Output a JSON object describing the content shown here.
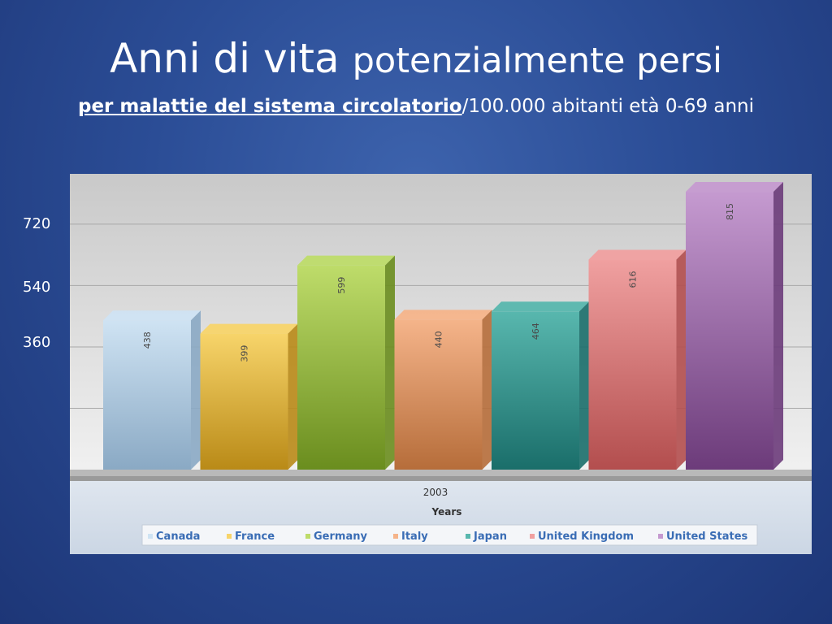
{
  "slide": {
    "title_main": "Anni di vita",
    "title_rest": "potenzialmente persi",
    "subtitle_bold": "per malattie del sistema circolatorio",
    "subtitle_rest": "/100.000 abitanti età 0-69 anni"
  },
  "y_ticks": [
    "720",
    "540",
    "360"
  ],
  "colors": {
    "Canada": [
      "#cfe3f3",
      "#8aa9c4"
    ],
    "France": [
      "#f7d46a",
      "#b98a17"
    ],
    "Germany": [
      "#bedc6a",
      "#6a8d1e"
    ],
    "Italy": [
      "#f5b48a",
      "#b66d3a"
    ],
    "Japan": [
      "#58b7ae",
      "#1a6e6a"
    ],
    "United Kingdom": [
      "#f0a0a0",
      "#b34e4e"
    ],
    "United States": [
      "#c59ad0",
      "#6c3b7a"
    ]
  },
  "chart_data": {
    "type": "bar",
    "categories": [
      "2003"
    ],
    "xlabel": "Years",
    "series": [
      {
        "name": "Canada",
        "values": [
          438
        ]
      },
      {
        "name": "France",
        "values": [
          399
        ]
      },
      {
        "name": "Germany",
        "values": [
          599
        ]
      },
      {
        "name": "Italy",
        "values": [
          440
        ]
      },
      {
        "name": "Japan",
        "values": [
          464
        ]
      },
      {
        "name": "United Kingdom",
        "values": [
          616
        ]
      },
      {
        "name": "United States",
        "values": [
          815
        ]
      }
    ],
    "ylim": [
      0,
      900
    ],
    "grid": true,
    "legend": "bottom"
  }
}
